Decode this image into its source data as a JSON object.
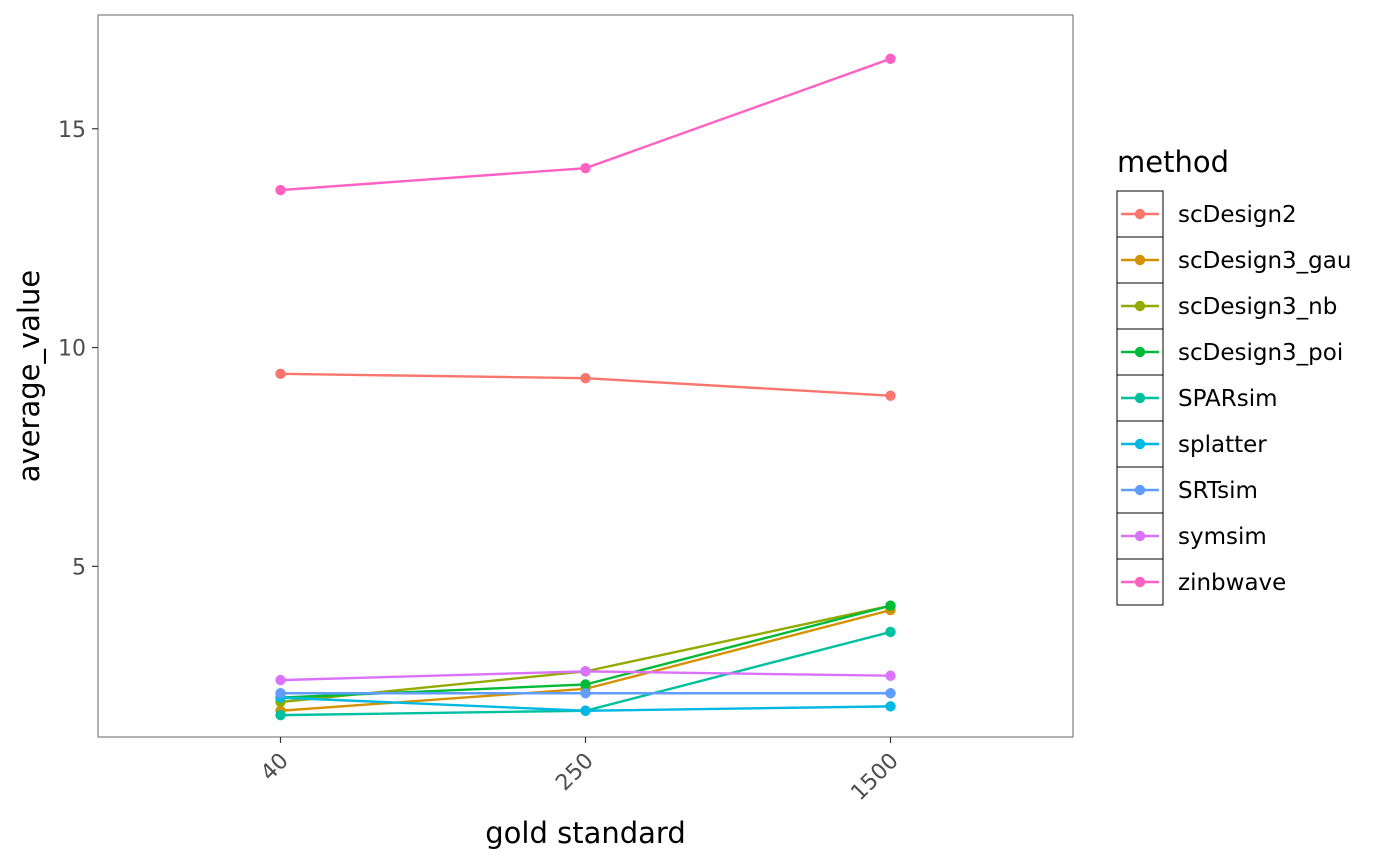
{
  "chart_data": {
    "type": "line",
    "xlabel": "gold standard",
    "ylabel": "average_value",
    "categories": [
      "40",
      "250",
      "1500"
    ],
    "y_ticks": [
      5,
      10,
      15
    ],
    "ylim": [
      1.1,
      17.6
    ],
    "grid": false,
    "legend": {
      "title": "method",
      "placement": "right"
    },
    "series": [
      {
        "name": "scDesign2",
        "color": "#F8766D",
        "values": [
          9.4,
          9.3,
          8.9
        ]
      },
      {
        "name": "scDesign3_gau",
        "color": "#D39200",
        "values": [
          1.7,
          2.2,
          4.0
        ]
      },
      {
        "name": "scDesign3_nb",
        "color": "#93AA00",
        "values": [
          1.9,
          2.6,
          4.1
        ]
      },
      {
        "name": "scDesign3_poi",
        "color": "#00BA38",
        "values": [
          2.0,
          2.3,
          4.1
        ]
      },
      {
        "name": "SPARsim",
        "color": "#00C19F",
        "values": [
          1.6,
          1.7,
          3.5
        ]
      },
      {
        "name": "splatter",
        "color": "#00B9E3",
        "values": [
          2.0,
          1.7,
          1.8
        ]
      },
      {
        "name": "SRTsim",
        "color": "#619CFF",
        "values": [
          2.1,
          2.1,
          2.1
        ]
      },
      {
        "name": "symsim",
        "color": "#DB72FB",
        "values": [
          2.4,
          2.6,
          2.5
        ]
      },
      {
        "name": "zinbwave",
        "color": "#FF61C3",
        "values": [
          13.6,
          14.1,
          16.6
        ]
      }
    ]
  }
}
